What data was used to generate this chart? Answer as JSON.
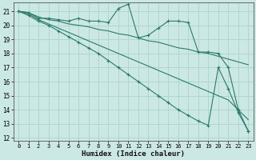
{
  "xlabel": "Humidex (Indice chaleur)",
  "bg_color": "#cce8e4",
  "grid_color": "#aad4cc",
  "line_color": "#2a7a6a",
  "xlim": [
    -0.5,
    23.5
  ],
  "ylim": [
    11.8,
    21.6
  ],
  "yticks": [
    12,
    13,
    14,
    15,
    16,
    17,
    18,
    19,
    20,
    21
  ],
  "xticks": [
    0,
    1,
    2,
    3,
    4,
    5,
    6,
    7,
    8,
    9,
    10,
    11,
    12,
    13,
    14,
    15,
    16,
    17,
    18,
    19,
    20,
    21,
    22,
    23
  ],
  "series": [
    {
      "x": [
        0,
        1,
        2,
        3,
        4,
        5,
        6,
        7,
        8,
        9,
        10,
        11,
        12,
        13,
        14,
        15,
        16,
        17,
        18,
        19,
        20,
        21,
        22,
        23
      ],
      "y": [
        21.0,
        20.9,
        20.5,
        20.5,
        20.4,
        20.3,
        20.5,
        20.3,
        20.3,
        20.2,
        21.2,
        21.5,
        19.1,
        19.3,
        19.8,
        20.3,
        20.3,
        20.2,
        18.1,
        18.1,
        18.0,
        17.0,
        14.0,
        12.5
      ],
      "marker": true
    },
    {
      "x": [
        0,
        1,
        2,
        3,
        4,
        5,
        6,
        7,
        8,
        9,
        10,
        11,
        12,
        13,
        14,
        15,
        16,
        17,
        18,
        19,
        20,
        21,
        22,
        23
      ],
      "y": [
        21.0,
        20.9,
        20.6,
        20.4,
        20.3,
        20.1,
        20.0,
        19.9,
        19.7,
        19.6,
        19.4,
        19.3,
        19.1,
        18.9,
        18.8,
        18.6,
        18.4,
        18.3,
        18.1,
        18.0,
        17.8,
        17.6,
        17.4,
        17.2
      ],
      "marker": false
    },
    {
      "x": [
        0,
        1,
        2,
        3,
        4,
        5,
        6,
        7,
        8,
        9,
        10,
        11,
        12,
        13,
        14,
        15,
        16,
        17,
        18,
        19,
        20,
        21,
        22,
        23
      ],
      "y": [
        21.0,
        20.8,
        20.4,
        20.1,
        19.8,
        19.5,
        19.2,
        18.9,
        18.6,
        18.3,
        18.0,
        17.7,
        17.4,
        17.1,
        16.8,
        16.5,
        16.2,
        15.9,
        15.6,
        15.3,
        15.0,
        14.7,
        14.0,
        13.3
      ],
      "marker": false
    },
    {
      "x": [
        0,
        1,
        2,
        3,
        4,
        5,
        6,
        7,
        8,
        9,
        10,
        11,
        12,
        13,
        14,
        15,
        16,
        17,
        18,
        19,
        20,
        21,
        22,
        23
      ],
      "y": [
        21.0,
        20.7,
        20.3,
        20.0,
        19.6,
        19.2,
        18.8,
        18.4,
        18.0,
        17.5,
        17.0,
        16.5,
        16.0,
        15.5,
        15.0,
        14.5,
        14.0,
        13.6,
        13.2,
        12.9,
        17.0,
        15.5,
        13.8,
        12.5
      ],
      "marker": true
    }
  ]
}
